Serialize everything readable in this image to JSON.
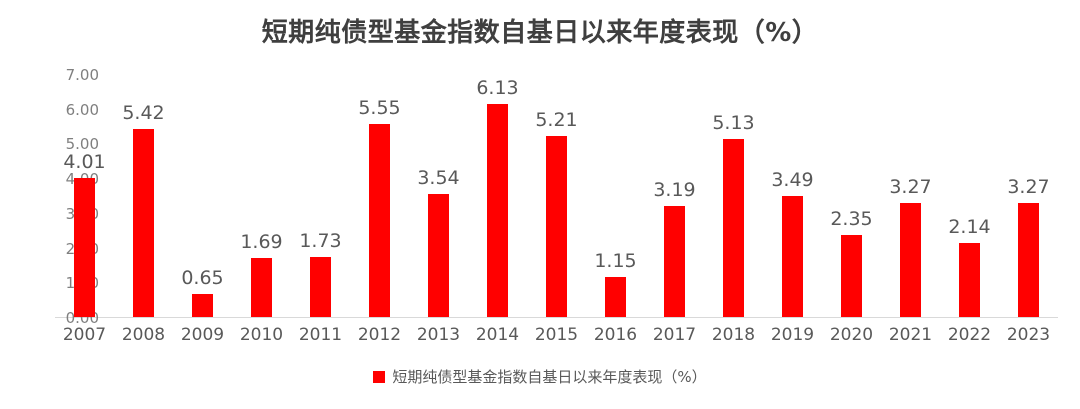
{
  "chart": {
    "title": "短期纯债型基金指数自基日以来年度表现（%）",
    "legend_label": "短期纯债型基金指数自基日以来年度表现（%）"
  },
  "chart_data": {
    "type": "bar",
    "title": "短期纯债型基金指数自基日以来年度表现（%）",
    "categories": [
      "2007",
      "2008",
      "2009",
      "2010",
      "2011",
      "2012",
      "2013",
      "2014",
      "2015",
      "2016",
      "2017",
      "2018",
      "2019",
      "2020",
      "2021",
      "2022",
      "2023"
    ],
    "values": [
      4.01,
      5.42,
      0.65,
      1.69,
      1.73,
      5.55,
      3.54,
      6.13,
      5.21,
      1.15,
      3.19,
      5.13,
      3.49,
      2.35,
      3.27,
      2.14,
      3.27
    ],
    "series": [
      {
        "name": "短期纯债型基金指数自基日以来年度表现（%）",
        "values": [
          4.01,
          5.42,
          0.65,
          1.69,
          1.73,
          5.55,
          3.54,
          6.13,
          5.21,
          1.15,
          3.19,
          5.13,
          3.49,
          2.35,
          3.27,
          2.14,
          3.27
        ]
      }
    ],
    "xlabel": "",
    "ylabel": "",
    "ylim": [
      0,
      7
    ],
    "y_ticks": [
      "0.00",
      "1.00",
      "2.00",
      "3.00",
      "4.00",
      "5.00",
      "6.00",
      "7.00"
    ],
    "data_labels_shown": true,
    "data_label_decimals": 2,
    "grid": false,
    "legend_position": "bottom"
  },
  "colors": {
    "bar": "#ff0000",
    "title_text": "#3f3f3f",
    "value_label_text": "#595959",
    "x_axis_text": "#595959",
    "y_axis_text": "#7f7f7f",
    "axis_line": "#d9d9d9",
    "legend_text": "#595959",
    "background": "#ffffff"
  }
}
